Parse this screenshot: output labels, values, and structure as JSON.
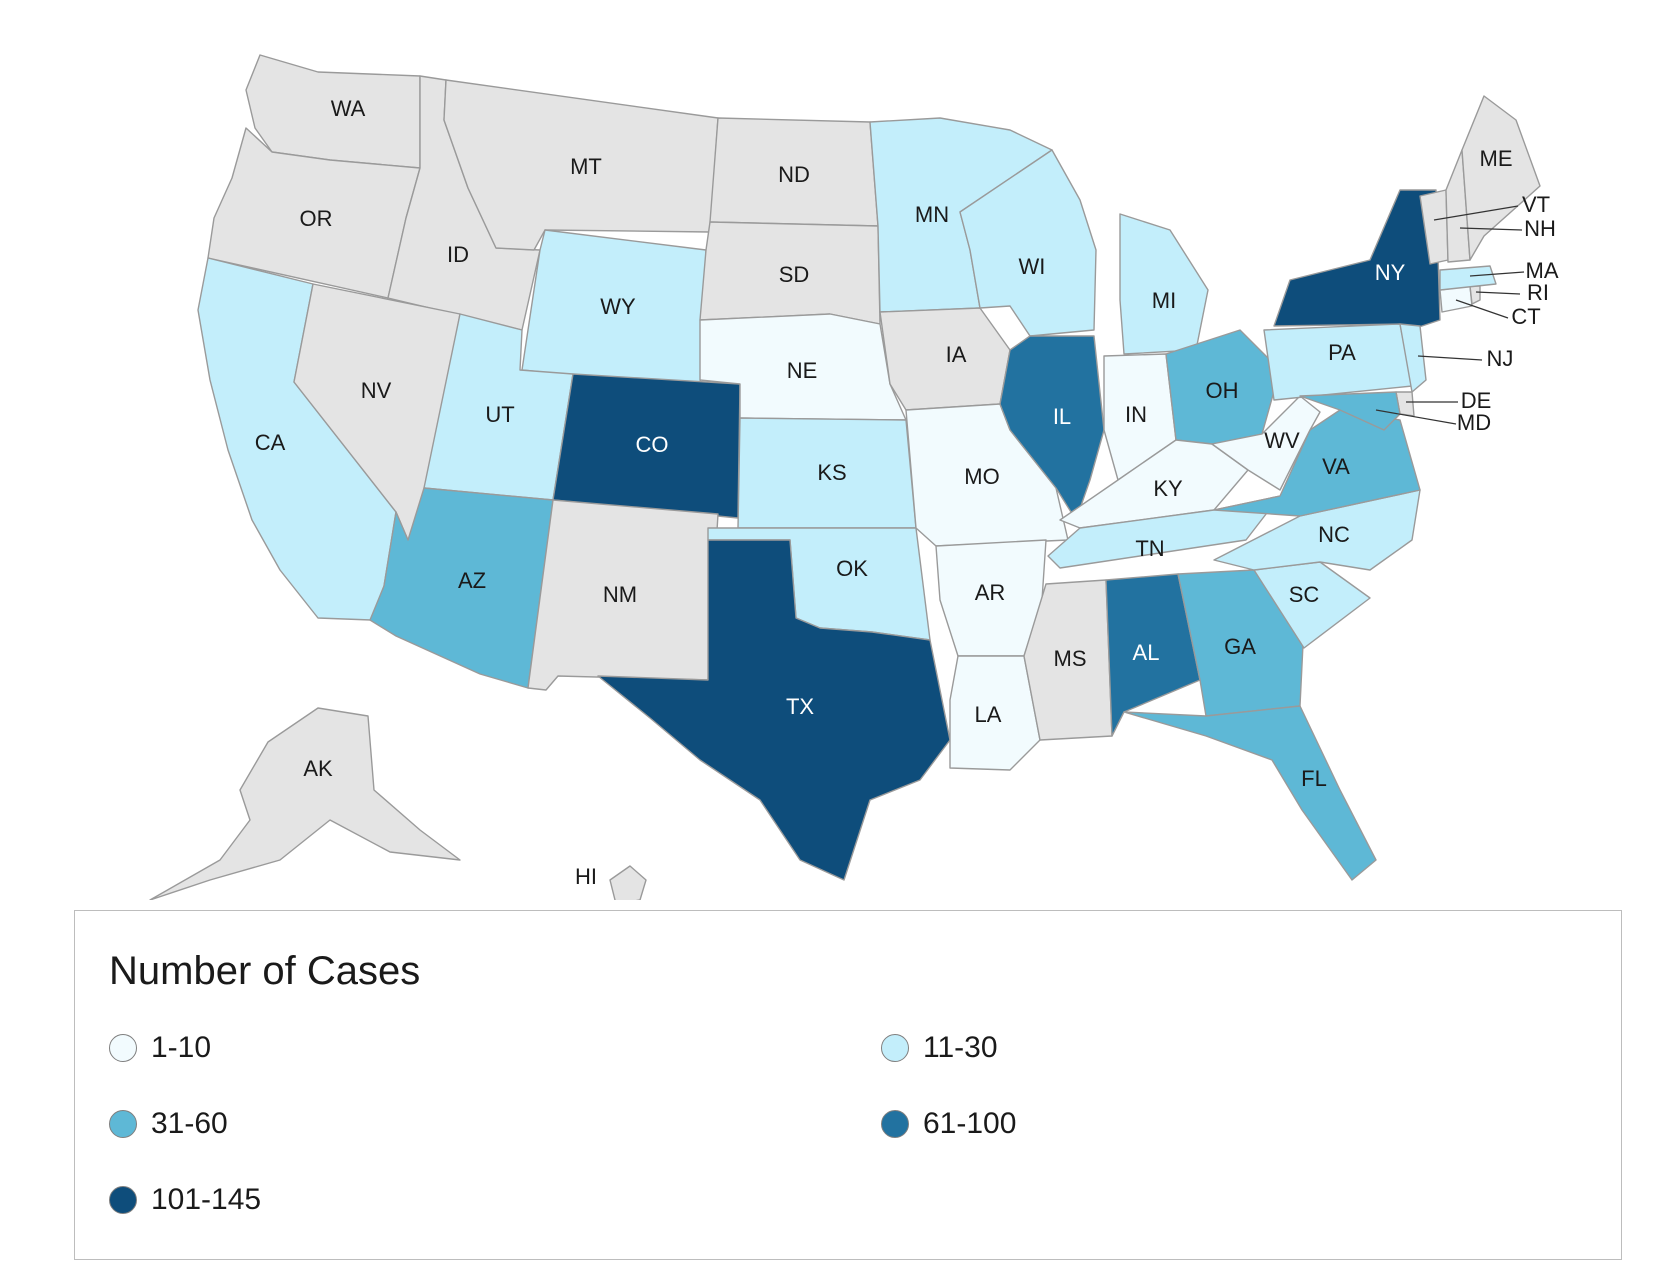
{
  "map": {
    "states": [
      {
        "abbr": "WA",
        "bin": "none"
      },
      {
        "abbr": "OR",
        "bin": "none"
      },
      {
        "abbr": "CA",
        "bin": "11-30"
      },
      {
        "abbr": "ID",
        "bin": "none"
      },
      {
        "abbr": "NV",
        "bin": "none"
      },
      {
        "abbr": "MT",
        "bin": "none"
      },
      {
        "abbr": "WY",
        "bin": "11-30"
      },
      {
        "abbr": "UT",
        "bin": "11-30"
      },
      {
        "abbr": "AZ",
        "bin": "31-60"
      },
      {
        "abbr": "CO",
        "bin": "101-145"
      },
      {
        "abbr": "NM",
        "bin": "none"
      },
      {
        "abbr": "ND",
        "bin": "none"
      },
      {
        "abbr": "SD",
        "bin": "none"
      },
      {
        "abbr": "NE",
        "bin": "1-10"
      },
      {
        "abbr": "KS",
        "bin": "11-30"
      },
      {
        "abbr": "OK",
        "bin": "11-30"
      },
      {
        "abbr": "TX",
        "bin": "101-145"
      },
      {
        "abbr": "MN",
        "bin": "11-30"
      },
      {
        "abbr": "IA",
        "bin": "none"
      },
      {
        "abbr": "MO",
        "bin": "1-10"
      },
      {
        "abbr": "AR",
        "bin": "1-10"
      },
      {
        "abbr": "LA",
        "bin": "1-10"
      },
      {
        "abbr": "WI",
        "bin": "11-30"
      },
      {
        "abbr": "IL",
        "bin": "61-100"
      },
      {
        "abbr": "MI",
        "bin": "11-30"
      },
      {
        "abbr": "IN",
        "bin": "1-10"
      },
      {
        "abbr": "OH",
        "bin": "31-60"
      },
      {
        "abbr": "KY",
        "bin": "1-10"
      },
      {
        "abbr": "TN",
        "bin": "11-30"
      },
      {
        "abbr": "MS",
        "bin": "none"
      },
      {
        "abbr": "AL",
        "bin": "61-100"
      },
      {
        "abbr": "GA",
        "bin": "31-60"
      },
      {
        "abbr": "FL",
        "bin": "31-60"
      },
      {
        "abbr": "SC",
        "bin": "11-30"
      },
      {
        "abbr": "NC",
        "bin": "11-30"
      },
      {
        "abbr": "VA",
        "bin": "31-60"
      },
      {
        "abbr": "WV",
        "bin": "1-10"
      },
      {
        "abbr": "PA",
        "bin": "11-30"
      },
      {
        "abbr": "NY",
        "bin": "101-145"
      },
      {
        "abbr": "NJ",
        "bin": "11-30"
      },
      {
        "abbr": "DE",
        "bin": "none"
      },
      {
        "abbr": "MD",
        "bin": "31-60"
      },
      {
        "abbr": "CT",
        "bin": "1-10"
      },
      {
        "abbr": "RI",
        "bin": "none"
      },
      {
        "abbr": "MA",
        "bin": "11-30"
      },
      {
        "abbr": "VT",
        "bin": "none"
      },
      {
        "abbr": "NH",
        "bin": "none"
      },
      {
        "abbr": "ME",
        "bin": "none"
      },
      {
        "abbr": "AK",
        "bin": "none"
      },
      {
        "abbr": "HI",
        "bin": "none"
      }
    ]
  },
  "legend": {
    "title": "Number of Cases",
    "items": [
      {
        "label": "1-10",
        "color": "#f2fbfe"
      },
      {
        "label": "11-30",
        "color": "#c3eefb"
      },
      {
        "label": "31-60",
        "color": "#5eb8d6"
      },
      {
        "label": "61-100",
        "color": "#2272a0"
      },
      {
        "label": "101-145",
        "color": "#0e4d7b"
      }
    ],
    "no_data_color": "#e4e4e4"
  }
}
